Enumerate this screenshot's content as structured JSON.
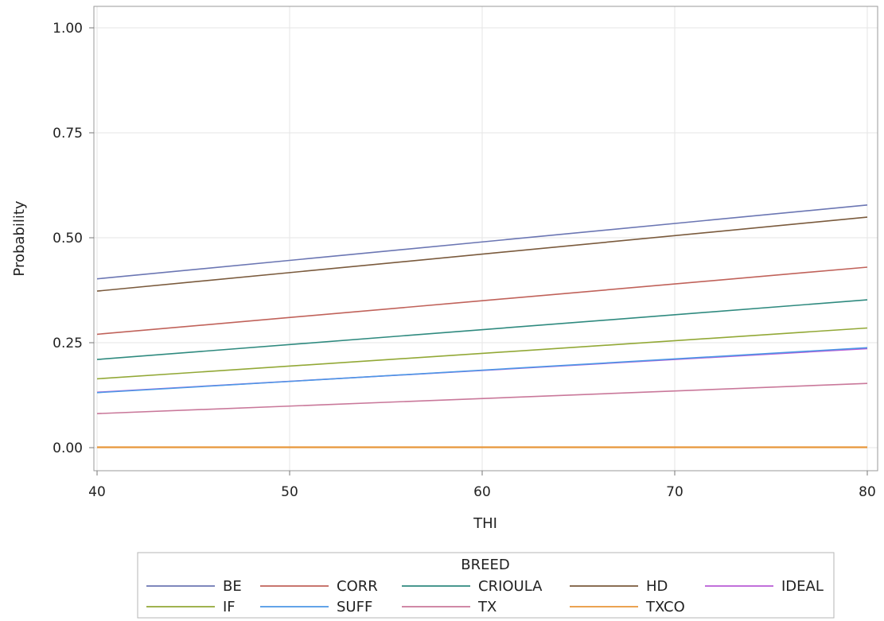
{
  "chart_data": {
    "type": "line",
    "title": "",
    "xlabel": "THI",
    "ylabel": "Probability",
    "xlim": [
      40,
      80
    ],
    "ylim": [
      0,
      1
    ],
    "x_ticks": [
      "40",
      "50",
      "60",
      "70",
      "80"
    ],
    "y_ticks": [
      "0.00",
      "0.25",
      "0.50",
      "0.75",
      "1.00"
    ],
    "grid": true,
    "legend": {
      "title": "BREED",
      "placement": "bottom"
    },
    "x": [
      40,
      80
    ],
    "series": [
      {
        "name": "BE",
        "color": "#6b76b3",
        "values": [
          0.402,
          0.578
        ]
      },
      {
        "name": "CORR",
        "color": "#c0625a",
        "values": [
          0.27,
          0.43
        ]
      },
      {
        "name": "CRIOULA",
        "color": "#2f8a7f",
        "values": [
          0.21,
          0.352
        ]
      },
      {
        "name": "HD",
        "color": "#7a5a3c",
        "values": [
          0.373,
          0.549
        ]
      },
      {
        "name": "IDEAL",
        "color": "#b85bd6",
        "values": [
          0.132,
          0.236
        ]
      },
      {
        "name": "IF",
        "color": "#92a836",
        "values": [
          0.164,
          0.285
        ]
      },
      {
        "name": "SUFF",
        "color": "#4b97e6",
        "values": [
          0.131,
          0.238
        ]
      },
      {
        "name": "TX",
        "color": "#c9789a",
        "values": [
          0.081,
          0.153
        ]
      },
      {
        "name": "TXCO",
        "color": "#e8963a",
        "values": [
          0.001,
          0.001
        ]
      }
    ]
  }
}
